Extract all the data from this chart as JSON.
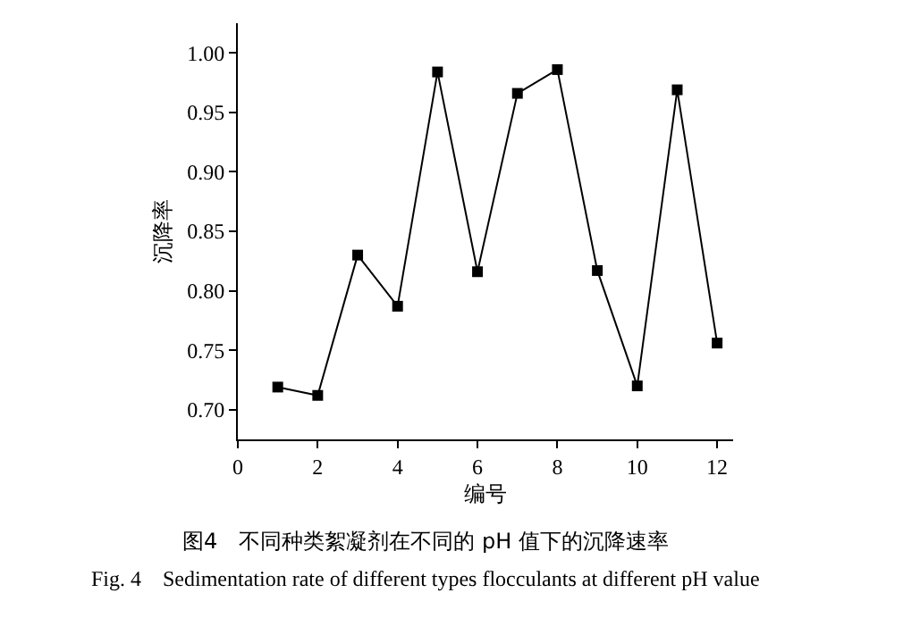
{
  "chart_data": {
    "type": "line",
    "xlabel": "编号",
    "ylabel": "沉降率",
    "x": [
      1,
      2,
      3,
      4,
      5,
      6,
      7,
      8,
      9,
      10,
      11,
      12
    ],
    "series": [
      {
        "color": "#000000",
        "values": [
          0.719,
          0.712,
          0.83,
          0.787,
          0.984,
          0.816,
          0.966,
          0.986,
          0.817,
          0.72,
          0.969,
          0.756
        ]
      }
    ],
    "xlim": [
      0,
      12.4
    ],
    "xticks": [
      0,
      2,
      4,
      6,
      8,
      10,
      12
    ],
    "ylim": [
      0.675,
      1.025
    ],
    "yticks": [
      {
        "value": 0.7,
        "label": "0.70"
      },
      {
        "value": 0.75,
        "label": "0.75"
      },
      {
        "value": 0.8,
        "label": "0.80"
      },
      {
        "value": 0.85,
        "label": "0.85"
      },
      {
        "value": 0.9,
        "label": "0.90"
      },
      {
        "value": 0.95,
        "label": "0.95"
      },
      {
        "value": 1.0,
        "label": "1.00"
      }
    ],
    "marker": "square",
    "line_style": "solid",
    "grid": false,
    "legend": false,
    "annotations": [
      "图4　不同种类絮凝剂在不同的 pH 值下的沉降速率",
      "Fig. 4　Sedimentation rate of different types flocculants at different pH value"
    ]
  }
}
